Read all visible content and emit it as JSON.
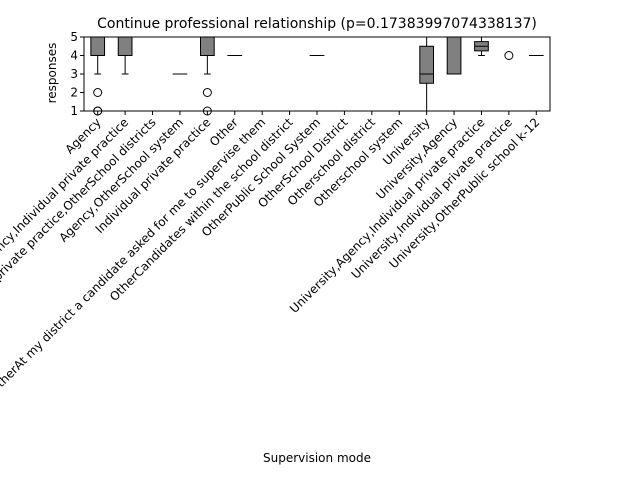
{
  "chart_data": {
    "type": "box",
    "title": "Continue professional relationship (p=0.17383997074338137)",
    "xlabel": "Supervision mode",
    "ylabel": "responses",
    "ylim": [
      1,
      5
    ],
    "yticks": [
      1,
      2,
      3,
      4,
      5
    ],
    "grid": false,
    "box_color": "#808080",
    "categories": [
      "Agency",
      "Agency,Individual private practice",
      "Agency,Individual private practice,OtherSchool districts",
      "Agency,OtherSchool system",
      "Individual private practice",
      "Other",
      "OtherAt my district a candidate asked for me to supervise them",
      "OtherCandidates within the school district",
      "OtherPublic School System",
      "OtherSchool District",
      "Otherschool district",
      "Otherschool system",
      "University",
      "University,Agency",
      "University,Agency,Individual private practice",
      "University,Individual private practice",
      "University,OtherPublic school k-12"
    ],
    "boxes": [
      {
        "q1": 4,
        "median": 5,
        "q3": 5,
        "whisker_low": 3,
        "whisker_high": 5,
        "outliers": [
          2,
          1,
          1
        ]
      },
      {
        "q1": 4,
        "median": 5,
        "q3": 5,
        "whisker_low": 3,
        "whisker_high": 5,
        "outliers": []
      },
      {
        "q1": 5,
        "median": 5,
        "q3": 5,
        "whisker_low": 5,
        "whisker_high": 5,
        "outliers": []
      },
      {
        "q1": 3,
        "median": 3,
        "q3": 3,
        "whisker_low": 3,
        "whisker_high": 3,
        "outliers": []
      },
      {
        "q1": 4,
        "median": 5,
        "q3": 5,
        "whisker_low": 3,
        "whisker_high": 5,
        "outliers": [
          2,
          1
        ]
      },
      {
        "q1": 4,
        "median": 4,
        "q3": 4,
        "whisker_low": 4,
        "whisker_high": 4,
        "outliers": []
      },
      {
        "q1": 5,
        "median": 5,
        "q3": 5,
        "whisker_low": 5,
        "whisker_high": 5,
        "outliers": []
      },
      {
        "q1": 5,
        "median": 5,
        "q3": 5,
        "whisker_low": 5,
        "whisker_high": 5,
        "outliers": []
      },
      {
        "q1": 4,
        "median": 4,
        "q3": 4,
        "whisker_low": 4,
        "whisker_high": 4,
        "outliers": []
      },
      {
        "q1": 5,
        "median": 5,
        "q3": 5,
        "whisker_low": 5,
        "whisker_high": 5,
        "outliers": []
      },
      {
        "q1": 5,
        "median": 5,
        "q3": 5,
        "whisker_low": 5,
        "whisker_high": 5,
        "outliers": []
      },
      {
        "q1": 5,
        "median": 5,
        "q3": 5,
        "whisker_low": 5,
        "whisker_high": 5,
        "outliers": []
      },
      {
        "q1": 2.5,
        "median": 3,
        "q3": 4.5,
        "whisker_low": 1,
        "whisker_high": 5,
        "outliers": []
      },
      {
        "q1": 3,
        "median": 5,
        "q3": 5,
        "whisker_low": 3,
        "whisker_high": 5,
        "outliers": []
      },
      {
        "q1": 4.25,
        "median": 4.5,
        "q3": 4.75,
        "whisker_low": 4,
        "whisker_high": 5,
        "outliers": []
      },
      {
        "q1": 5,
        "median": 5,
        "q3": 5,
        "whisker_low": 5,
        "whisker_high": 5,
        "outliers": [
          4
        ]
      },
      {
        "q1": 4,
        "median": 4,
        "q3": 4,
        "whisker_low": 4,
        "whisker_high": 4,
        "outliers": []
      }
    ]
  }
}
